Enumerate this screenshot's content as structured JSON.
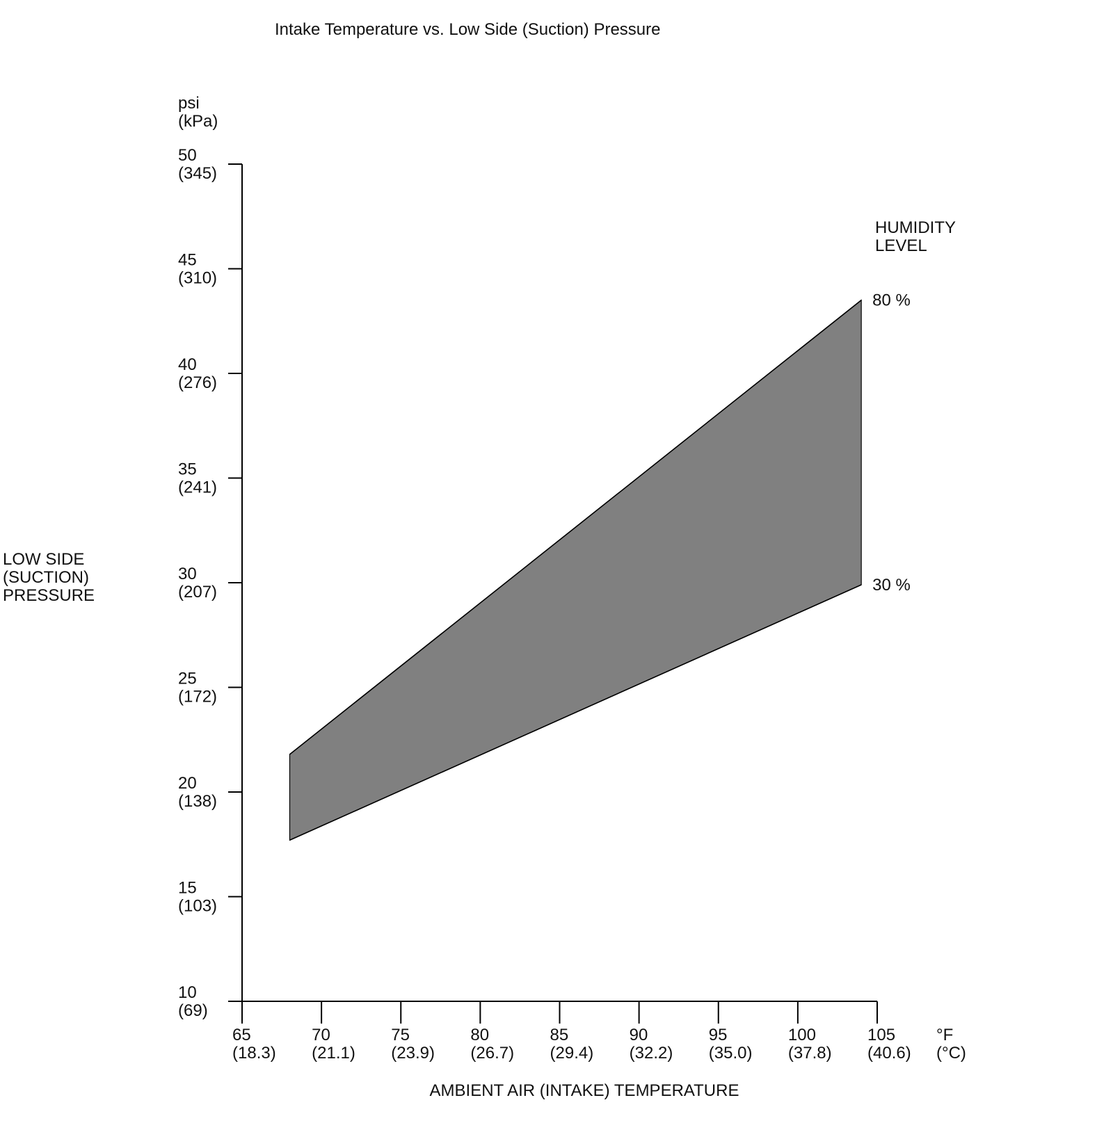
{
  "chart_data": {
    "type": "area",
    "title": "Intake Temperature vs. Low Side (Suction) Pressure",
    "xlabel": "AMBIENT AIR (INTAKE) TEMPERATURE",
    "ylabel": [
      "LOW SIDE",
      "(SUCTION)",
      "PRESSURE"
    ],
    "y_unit": [
      "psi",
      "(kPa)"
    ],
    "x_unit": [
      "°F",
      "(°C)"
    ],
    "xlim": [
      65,
      105
    ],
    "ylim": [
      10,
      50
    ],
    "x_ticks": [
      {
        "value": 65,
        "label": "65",
        "sub": "(18.3)"
      },
      {
        "value": 70,
        "label": "70",
        "sub": "(21.1)"
      },
      {
        "value": 75,
        "label": "75",
        "sub": "(23.9)"
      },
      {
        "value": 80,
        "label": "80",
        "sub": "(26.7)"
      },
      {
        "value": 85,
        "label": "85",
        "sub": "(29.4)"
      },
      {
        "value": 90,
        "label": "90",
        "sub": "(32.2)"
      },
      {
        "value": 95,
        "label": "95",
        "sub": "(35.0)"
      },
      {
        "value": 100,
        "label": "100",
        "sub": "(37.8)"
      },
      {
        "value": 105,
        "label": "105",
        "sub": "(40.6)"
      }
    ],
    "y_ticks": [
      {
        "value": 50,
        "label": "50",
        "sub": "(345)"
      },
      {
        "value": 45,
        "label": "45",
        "sub": "(310)"
      },
      {
        "value": 40,
        "label": "40",
        "sub": "(276)"
      },
      {
        "value": 35,
        "label": "35",
        "sub": "(241)"
      },
      {
        "value": 30,
        "label": "30",
        "sub": "(207)"
      },
      {
        "value": 25,
        "label": "25",
        "sub": "(172)"
      },
      {
        "value": 20,
        "label": "20",
        "sub": "(138)"
      },
      {
        "value": 15,
        "label": "15",
        "sub": "(103)"
      },
      {
        "value": 10,
        "label": "10",
        "sub": "(69)"
      }
    ],
    "band": {
      "x": [
        68,
        104
      ],
      "upper": {
        "label": "80 %",
        "values": [
          21.8,
          43.5
        ]
      },
      "lower": {
        "label": "30 %",
        "values": [
          17.7,
          29.9
        ]
      },
      "fill": "#808080"
    },
    "legend_title": [
      "HUMIDITY",
      "LEVEL"
    ],
    "grid": false
  }
}
